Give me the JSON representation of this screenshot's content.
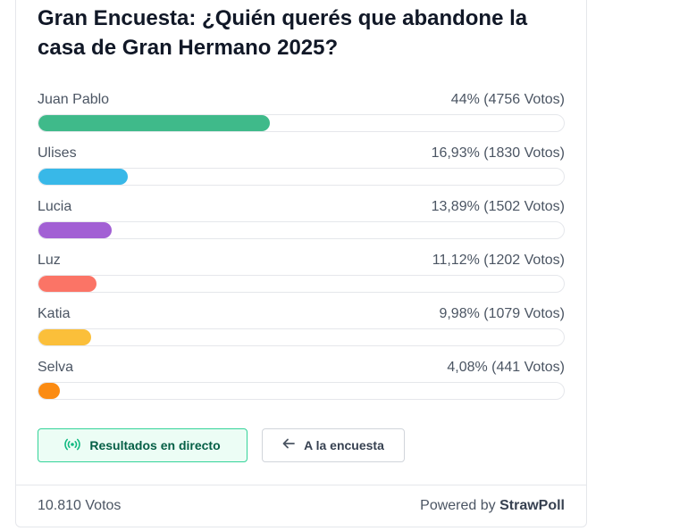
{
  "poll": {
    "title": "Gran Encuesta: ¿Quién querés que abandone la casa de Gran Hermano 2025?",
    "options": [
      {
        "name": "Juan Pablo",
        "stats": "44% (4756 Votos)",
        "percent": 44,
        "color": "#3fba8a"
      },
      {
        "name": "Ulises",
        "stats": "16,93% (1830 Votos)",
        "percent": 16.93,
        "color": "#38b8e8"
      },
      {
        "name": "Lucia",
        "stats": "13,89% (1502 Votos)",
        "percent": 13.89,
        "color": "#a260d4"
      },
      {
        "name": "Luz",
        "stats": "11,12% (1202 Votos)",
        "percent": 11.12,
        "color": "#fb7466"
      },
      {
        "name": "Katia",
        "stats": "9,98% (1079 Votos)",
        "percent": 9.98,
        "color": "#fbbf3a"
      },
      {
        "name": "Selva",
        "stats": "4,08% (441 Votos)",
        "percent": 4.08,
        "color": "#fb8b12"
      }
    ]
  },
  "buttons": {
    "live_label": "Resultados en directo",
    "live_icon": "broadcast-icon",
    "back_label": "A la encuesta",
    "back_icon": "arrow-left-icon"
  },
  "footer": {
    "total_votes": "10.810 Votos",
    "powered_prefix": "Powered by",
    "powered_brand": "StrawPoll"
  }
}
